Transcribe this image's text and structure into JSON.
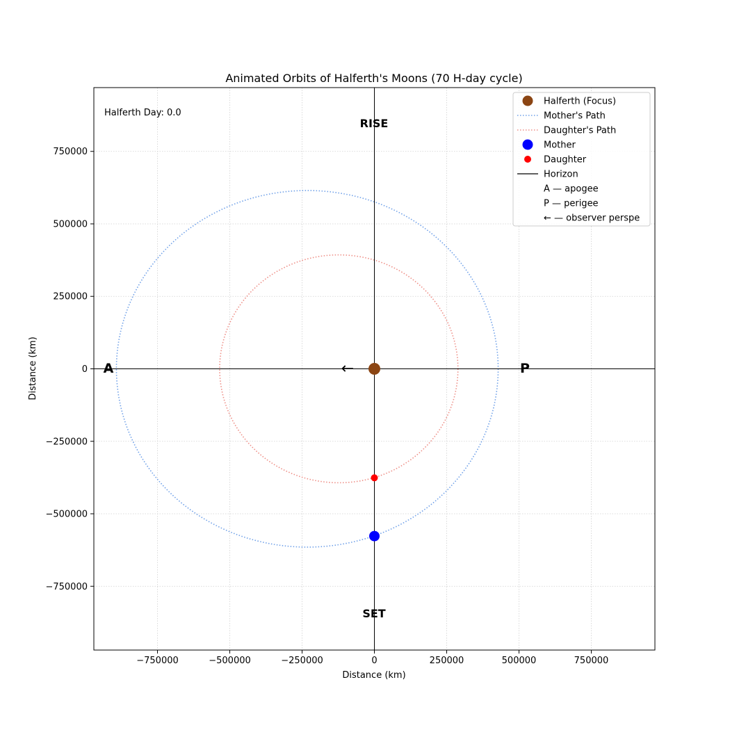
{
  "chart_data": {
    "type": "scatter",
    "title": "Animated Orbits of Halferth's Moons (70 H-day cycle)",
    "xlabel": "Distance (km)",
    "ylabel": "Distance (km)",
    "xlim": [
      -970000,
      970000
    ],
    "ylim": [
      -970000,
      970000
    ],
    "grid": true,
    "legend_position": "top-right",
    "x_ticks": [
      -750000,
      -500000,
      -250000,
      0,
      250000,
      500000,
      750000
    ],
    "y_ticks": [
      -750000,
      -500000,
      -250000,
      0,
      250000,
      500000,
      750000
    ],
    "x_tick_labels": [
      "−750000",
      "−500000",
      "−250000",
      "0",
      "250000",
      "500000",
      "750000"
    ],
    "y_tick_labels": [
      "−750000",
      "−500000",
      "−250000",
      "0",
      "250000",
      "500000",
      "750000"
    ],
    "day_label": "Halferth Day: 0.0",
    "annotations": {
      "rise": "RISE",
      "set": "SET",
      "apogee": "A",
      "perigee": "P",
      "observer_arrow": "←"
    },
    "orbits": [
      {
        "name": "Mother's Path",
        "center_x": -232000,
        "center_y": 0,
        "semi_major": 660000,
        "semi_minor": 615000,
        "color": "#6fa0e8"
      },
      {
        "name": "Daughter's Path",
        "center_x": -123000,
        "center_y": 0,
        "semi_major": 412000,
        "semi_minor": 393000,
        "color": "#ee8e86"
      }
    ],
    "series": [
      {
        "name": "Halferth (Focus)",
        "x": [
          0
        ],
        "y": [
          0
        ],
        "color": "#8b4513"
      },
      {
        "name": "Mother",
        "x": [
          0
        ],
        "y": [
          -577000
        ],
        "color": "#0000ff"
      },
      {
        "name": "Daughter",
        "x": [
          0
        ],
        "y": [
          -376000
        ],
        "color": "#ff0000"
      }
    ],
    "legend": [
      {
        "label": "Halferth (Focus)",
        "kind": "marker",
        "color": "#8b4513",
        "size": "large"
      },
      {
        "label": "Mother's Path",
        "kind": "dotted",
        "color": "#6fa0e8"
      },
      {
        "label": "Daughter's Path",
        "kind": "dotted",
        "color": "#ee8e86"
      },
      {
        "label": "Mother",
        "kind": "marker",
        "color": "#0000ff",
        "size": "large"
      },
      {
        "label": "Daughter",
        "kind": "marker",
        "color": "#ff0000",
        "size": "small"
      },
      {
        "label": "Horizon",
        "kind": "line",
        "color": "#000000"
      },
      {
        "label": "A — apogee",
        "kind": "none",
        "color": ""
      },
      {
        "label": "P — perigee",
        "kind": "none",
        "color": ""
      },
      {
        "label": "← — observer perspe",
        "kind": "none",
        "color": ""
      }
    ]
  }
}
